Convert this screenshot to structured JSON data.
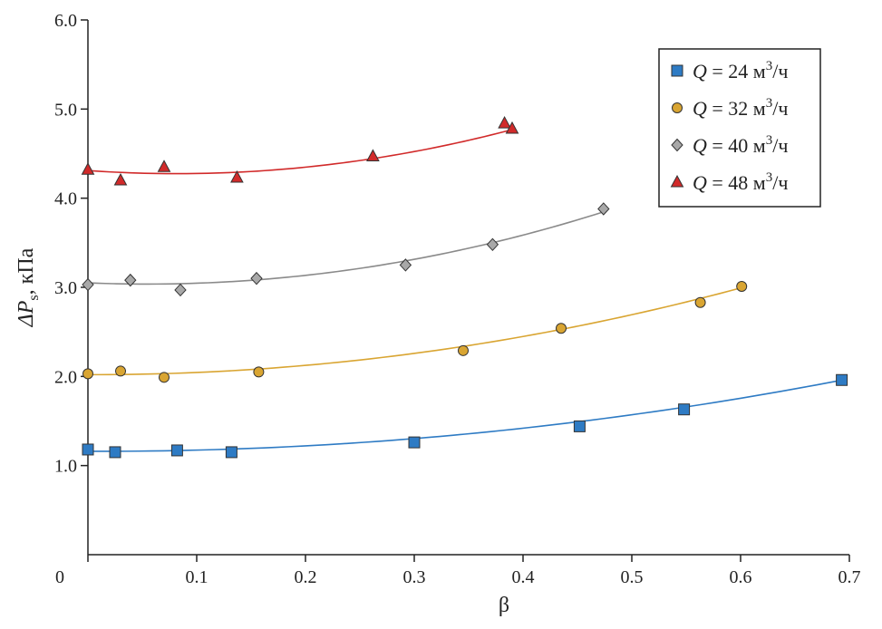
{
  "chart_data": {
    "type": "scatter",
    "title": "",
    "xlabel": "β",
    "ylabel": {
      "main": "ΔP",
      "sub": "s",
      "rest": ", кПа"
    },
    "xlim": [
      0,
      0.7
    ],
    "ylim": [
      0,
      6.0
    ],
    "x_ticks": [
      0,
      0.1,
      0.2,
      0.3,
      0.4,
      0.5,
      0.6,
      0.7
    ],
    "x_tick_labels": [
      "0",
      "0.1",
      "0.2",
      "0.3",
      "0.4",
      "0.5",
      "0.6",
      "0.7"
    ],
    "y_ticks": [
      1.0,
      2.0,
      3.0,
      4.0,
      5.0,
      6.0
    ],
    "y_tick_labels": [
      "1.0",
      "2.0",
      "3.0",
      "4.0",
      "5.0",
      "6.0"
    ],
    "legend_position": "top-right",
    "series": [
      {
        "name": "Q = 24 м3/ч",
        "legend": {
          "var": "Q",
          "eq": " = 24 м",
          "sup": "3",
          "unit": "/ч"
        },
        "marker": "square",
        "color": "#2e7bc4",
        "line_color": "#2e7bc4",
        "x": [
          0.0,
          0.025,
          0.082,
          0.132,
          0.3,
          0.452,
          0.548,
          0.693
        ],
        "y": [
          1.18,
          1.15,
          1.17,
          1.15,
          1.26,
          1.44,
          1.63,
          1.96
        ],
        "fit": [
          1.16,
          -0.04,
          1.72
        ]
      },
      {
        "name": "Q = 32 м3/ч",
        "legend": {
          "var": "Q",
          "eq": " = 32 м",
          "sup": "3",
          "unit": "/ч"
        },
        "marker": "circle",
        "color": "#d9a532",
        "line_color": "#d9a532",
        "x": [
          0.0,
          0.03,
          0.07,
          0.157,
          0.345,
          0.435,
          0.563,
          0.601
        ],
        "y": [
          2.03,
          2.06,
          1.99,
          2.05,
          2.29,
          2.54,
          2.83,
          3.01
        ],
        "fit": [
          2.02,
          -0.03,
          2.75
        ]
      },
      {
        "name": "Q = 40 м3/ч",
        "legend": {
          "var": "Q",
          "eq": " = 40 м",
          "sup": "3",
          "unit": "/ч"
        },
        "marker": "diamond",
        "color": "#a8a8a8",
        "line_color": "#8a8a8a",
        "x": [
          0.0,
          0.039,
          0.085,
          0.155,
          0.292,
          0.372,
          0.474
        ],
        "y": [
          3.03,
          3.08,
          2.97,
          3.1,
          3.25,
          3.48,
          3.88
        ],
        "fit": [
          3.05,
          -0.5,
          4.6
        ]
      },
      {
        "name": "Q = 48 м3/ч",
        "legend": {
          "var": "Q",
          "eq": " = 48 м",
          "sup": "3",
          "unit": "/ч"
        },
        "marker": "triangle",
        "color": "#d12a2a",
        "line_color": "#d12a2a",
        "x": [
          0.0,
          0.03,
          0.07,
          0.137,
          0.262,
          0.383,
          0.39
        ],
        "y": [
          4.32,
          4.2,
          4.35,
          4.23,
          4.47,
          4.84,
          4.78
        ],
        "fit": [
          4.31,
          -0.85,
          5.2
        ]
      }
    ]
  }
}
